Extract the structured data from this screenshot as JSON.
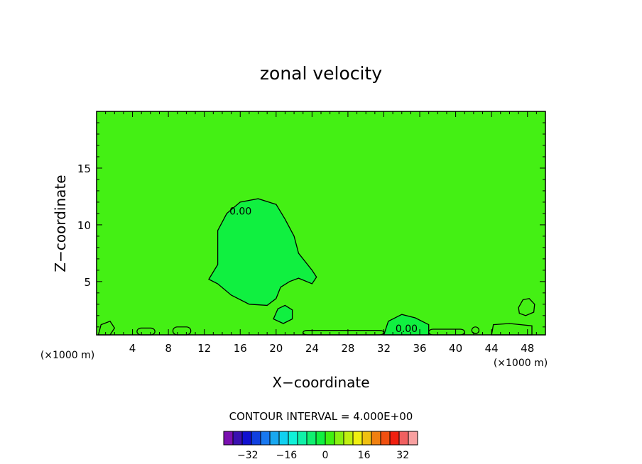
{
  "chart_data": {
    "type": "heatmap",
    "title": "zonal velocity",
    "xlabel": "X−coordinate",
    "ylabel": "Z−coordinate",
    "x_unit_left": "(×1000 m)",
    "x_unit_right": "(×1000 m)",
    "xlim": [
      0,
      50
    ],
    "ylim": [
      0.3,
      20
    ],
    "x_ticks": [
      4,
      8,
      12,
      16,
      20,
      24,
      28,
      32,
      36,
      40,
      44,
      48
    ],
    "y_ticks": [
      5,
      10,
      15
    ],
    "background_value": 0,
    "contour_label": "0.00",
    "contour_interval_text": "CONTOUR INTERVAL = 4.000E+00",
    "contour_interval": 4,
    "regions": [
      {
        "name": "upper-cell",
        "value": 2,
        "label": "0.00",
        "points": [
          [
            12.5,
            5.2
          ],
          [
            13.5,
            6.5
          ],
          [
            13.5,
            9.5
          ],
          [
            14.5,
            11
          ],
          [
            16,
            12
          ],
          [
            18,
            12.3
          ],
          [
            20,
            11.8
          ],
          [
            21,
            10.5
          ],
          [
            22,
            9
          ],
          [
            22.5,
            7.5
          ],
          [
            24,
            6
          ],
          [
            24.5,
            5.4
          ],
          [
            24,
            4.8
          ],
          [
            22.5,
            5.3
          ],
          [
            21.5,
            5
          ],
          [
            20.5,
            4.5
          ],
          [
            20,
            3.5
          ],
          [
            19,
            2.9
          ],
          [
            17,
            3
          ],
          [
            15,
            3.8
          ],
          [
            13.5,
            4.8
          ]
        ]
      },
      {
        "name": "blob-20",
        "value": 2,
        "points": [
          [
            19.7,
            1.7
          ],
          [
            20.2,
            2.6
          ],
          [
            21,
            2.9
          ],
          [
            21.8,
            2.5
          ],
          [
            21.8,
            1.7
          ],
          [
            20.8,
            1.3
          ]
        ]
      },
      {
        "name": "blob-48",
        "value": -2,
        "points": [
          [
            47,
            2.7
          ],
          [
            47.5,
            3.4
          ],
          [
            48.2,
            3.5
          ],
          [
            48.8,
            3.0
          ],
          [
            48.7,
            2.3
          ],
          [
            47.8,
            2.0
          ],
          [
            47.1,
            2.2
          ]
        ]
      },
      {
        "name": "surface-34",
        "value": 2,
        "label": "0.00",
        "points": [
          [
            32.5,
            1.5
          ],
          [
            34,
            2.1
          ],
          [
            35.5,
            1.8
          ],
          [
            37,
            1.2
          ],
          [
            37,
            0.3
          ],
          [
            32,
            0.3
          ]
        ]
      },
      {
        "name": "surface-left",
        "value": -2,
        "points": [
          [
            0.2,
            0.3
          ],
          [
            0.5,
            1.2
          ],
          [
            1.5,
            1.5
          ],
          [
            2,
            0.9
          ],
          [
            1.5,
            0.3
          ]
        ]
      },
      {
        "name": "surface-right",
        "value": -2,
        "points": [
          [
            44,
            0.3
          ],
          [
            44.2,
            1.2
          ],
          [
            46,
            1.3
          ],
          [
            48.5,
            1.1
          ],
          [
            48.5,
            0.3
          ]
        ]
      }
    ],
    "colorbar": {
      "tick_labels": [
        "−32",
        "−16",
        "0",
        "16",
        "32"
      ],
      "tick_values": [
        -32,
        -16,
        0,
        16,
        32
      ],
      "levels": [
        -40,
        -36,
        -32,
        -28,
        -24,
        -20,
        -16,
        -12,
        -8,
        -4,
        0,
        4,
        8,
        12,
        16,
        20,
        24,
        28,
        32,
        36,
        40
      ],
      "colors": [
        "#7a10b0",
        "#3a10b0",
        "#1010d0",
        "#1040e0",
        "#1878f0",
        "#18a8f0",
        "#10d0f0",
        "#10f0d8",
        "#10f0a8",
        "#10f070",
        "#10f040",
        "#40f010",
        "#88f010",
        "#c0f010",
        "#f0f010",
        "#f0c010",
        "#f08010",
        "#f05010",
        "#f02010",
        "#f06060",
        "#f8a0a0"
      ]
    }
  }
}
